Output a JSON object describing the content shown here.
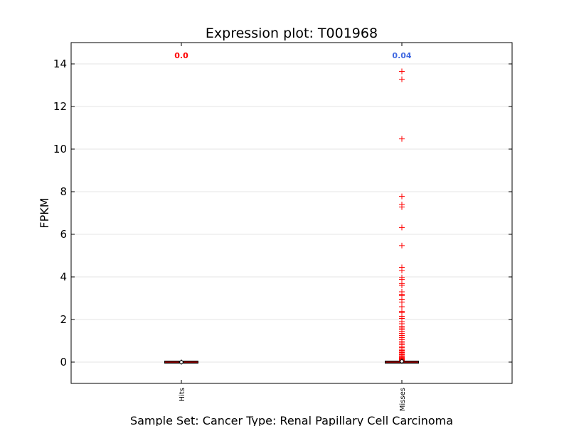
{
  "chart_data": {
    "type": "box",
    "title": "Expression plot: T001968",
    "xlabel": "Sample Set: Cancer Type: Renal Papillary Cell Carcinoma",
    "ylabel": "FPKM",
    "ylim": [
      -1,
      15
    ],
    "yticks": [
      0,
      2,
      4,
      6,
      8,
      10,
      12,
      14
    ],
    "ytick_labels": [
      "0",
      "2",
      "4",
      "6",
      "8",
      "10",
      "12",
      "14"
    ],
    "grid": true,
    "categories": [
      "Hits",
      "Misses"
    ],
    "annotations": [
      {
        "category": "Hits",
        "text": "0.0",
        "color": "#ff0000"
      },
      {
        "category": "Misses",
        "text": "0.04",
        "color": "#4169e1"
      }
    ],
    "boxes": [
      {
        "category": "Hits",
        "q1": 0.0,
        "median": 0.0,
        "q3": 0.0,
        "whisker_low": 0.0,
        "whisker_high": 0.0,
        "mean": 0.0,
        "outliers": []
      },
      {
        "category": "Misses",
        "q1": 0.0,
        "median": 0.0,
        "q3": 0.0,
        "whisker_low": 0.0,
        "whisker_high": 0.0,
        "mean": 0.04,
        "outliers": [
          13.65,
          13.28,
          10.48,
          7.78,
          7.4,
          7.28,
          6.32,
          5.47,
          4.45,
          4.3,
          3.97,
          3.88,
          3.68,
          3.6,
          3.3,
          3.18,
          3.12,
          2.95,
          2.82,
          2.6,
          2.38,
          2.32,
          2.15,
          2.05,
          1.9,
          1.8,
          1.68,
          1.6,
          1.52,
          1.45,
          1.35,
          1.25,
          1.15,
          1.05,
          0.98,
          0.9,
          0.82,
          0.75,
          0.68,
          0.6,
          0.55,
          0.5,
          0.45,
          0.4,
          0.35,
          0.3,
          0.26,
          0.22,
          0.18,
          0.15,
          0.12,
          0.1,
          0.08,
          0.06
        ]
      }
    ],
    "colors": {
      "outlier": "#ff0000",
      "median": "#ff0000",
      "box": "#000000",
      "mean": "#000000"
    }
  }
}
